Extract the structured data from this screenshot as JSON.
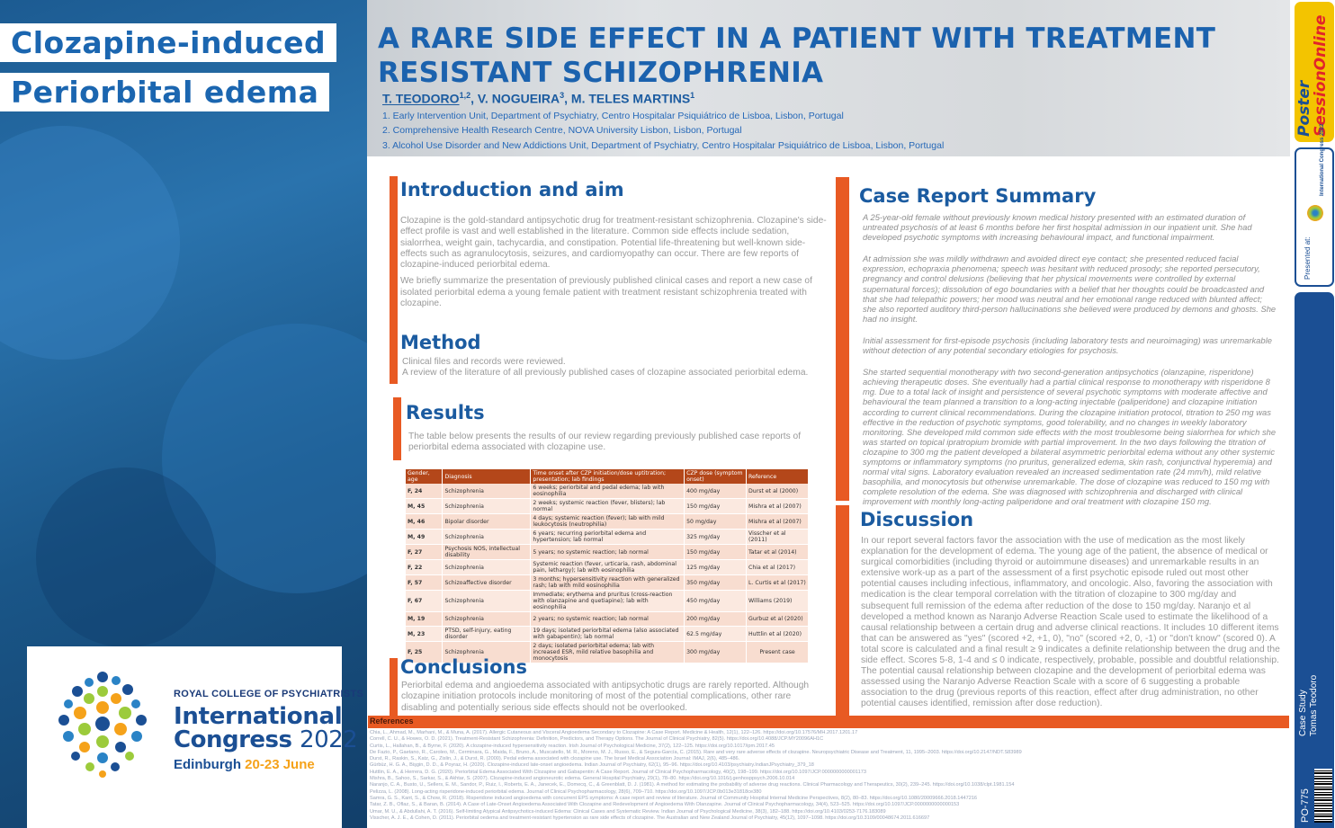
{
  "side_titles": [
    "Clozapine-induced",
    "Periorbital edema"
  ],
  "logo": {
    "org": "ROYAL COLLEGE OF PSYCHIATRISTS",
    "line1": "International",
    "line2_word": "Congress",
    "line2_year": "2022",
    "city": "Edinburgh",
    "dates": "20-23 June"
  },
  "header": {
    "title": "A RARE SIDE EFFECT IN A PATIENT WITH TREATMENT RESISTANT SCHIZOPHRENIA",
    "first_author": "T. TEODORO",
    "first_author_sup": "1,2",
    "other_authors": ", V. NOGUEIRA",
    "author2_sup": "3",
    "author3": ", M. TELES MARTINS",
    "author3_sup": "1",
    "affiliations": [
      "1. Early Intervention Unit, Department of Psychiatry, Centro Hospitalar Psiquiátrico de Lisboa, Lisbon, Portugal",
      "2. Comprehensive Health Research Centre, NOVA University Lisbon, Lisbon, Portugal",
      "3. Alcohol Use Disorder and New Addictions Unit, Department of Psychiatry, Centro Hospitalar Psiquiátrico de Lisboa, Lisbon, Portugal"
    ]
  },
  "right_strip": {
    "badge_a": "Poster",
    "badge_b": "SessionOnline",
    "presented_at": "Presented at:",
    "mini_logo_text": "International Congress 2022",
    "case_study": "Case Study",
    "author": "Tomas Teodoro",
    "code": "PO-775"
  },
  "intro": {
    "title": "Introduction and aim",
    "p1": "Clozapine is the gold-standard antipsychotic drug for treatment-resistant schizophrenia. Clozapine's side-effect profile is vast and well established in the literature. Common side effects include sedation, sialorrhea, weight gain, tachycardia, and constipation. Potential life-threatening but well-known side-effects such as agranulocytosis, seizures, and cardiomyopathy can occur. There are few reports of clozapine-induced periorbital edema.",
    "p2": "We briefly summarize the presentation of previously published clinical cases and report a new case of isolated periorbital edema a young female patient with treatment resistant schizophrenia treated with clozapine."
  },
  "method": {
    "title": "Method",
    "p1": "Clinical files and records were reviewed.",
    "p2": "A review of the literature of all previously published cases of clozapine associated periorbital edema."
  },
  "results": {
    "title": "Results",
    "intro": "The table below presents the results of our review regarding previously published case reports of periorbital edema associated with clozapine use.",
    "columns": [
      "Gender, age",
      "Diagnosis",
      "Time onset after CZP initiation/dose uptitration; presentation; lab findings",
      "CZP dose (symptom onset)",
      "Reference"
    ],
    "rows": [
      [
        "F, 24",
        "Schizophrenia",
        "6 weeks; periorbital and pedal edema; lab with eosinophilia",
        "400 mg/day",
        "Durst et al (2000)"
      ],
      [
        "M, 45",
        "Schizophrenia",
        "2 weeks; systemic reaction (fever, blisters); lab normal",
        "150 mg/day",
        "Mishra et al (2007)"
      ],
      [
        "M, 46",
        "Bipolar disorder",
        "4 days; systemic reaction (fever); lab with mild leukocytosis (neutrophilia)",
        "50 mg/day",
        "Mishra et al (2007)"
      ],
      [
        "M, 49",
        "Schizophrenia",
        "6 years; recurring periorbital edema and hypertension; lab normal",
        "325 mg/day",
        "Visscher et al (2011)"
      ],
      [
        "F, 27",
        "Psychosis NOS, intellectual disability",
        "5 years; no systemic reaction; lab normal",
        "150 mg/day",
        "Tatar et al (2014)"
      ],
      [
        "F, 22",
        "Schizophrenia",
        "Systemic reaction (fever, urticaria, rash, abdominal pain, lethargy); lab with eosinophilia",
        "125 mg/day",
        "Chia et al (2017)"
      ],
      [
        "F, 57",
        "Schizoaffective disorder",
        "3 months; hypersensitivity reaction with generalized rash; lab with mild eosinophilia",
        "350 mg/day",
        "L. Curtis et al (2017)"
      ],
      [
        "F, 67",
        "Schizophrenia",
        "Immediate; erythema and pruritus (cross-reaction with olanzapine and quetiapine); lab with eosinophilia",
        "450 mg/day",
        "Williams (2019)"
      ],
      [
        "M, 19",
        "Schizophrenia",
        "2 years; no systemic reaction; lab normal",
        "200 mg/day",
        "Gurbuz et al (2020)"
      ],
      [
        "M, 23",
        "PTSD, self-injury, eating disorder",
        "19 days; isolated periorbital edema (also associated with gabapentin); lab normal",
        "62.5 mg/day",
        "Huttlin et al (2020)"
      ],
      [
        "F, 25",
        "Schizophrenia",
        "2 days; isolated periorbital edema; lab with increased ESR, mild relative basophilia and monocytosis",
        "300 mg/day",
        "Present case"
      ]
    ]
  },
  "conclusions": {
    "title": "Conclusions",
    "text": "Periorbital edema and angioedema associated with antipsychotic drugs are rarely reported. Although clozapine initiation protocols include monitoring of most of the potential complications, other rare disabling and potentially serious side effects should not be overlooked."
  },
  "case_report": {
    "title": "Case Report Summary",
    "paragraphs": [
      "A 25-year-old female without previously known medical history presented with an estimated duration of untreated psychosis of at least 6 months before her first hospital admission in our inpatient unit. She had developed psychotic symptoms with increasing behavioural impact, and functional impairment.",
      "At admission she was mildly withdrawn and avoided direct eye contact; she presented reduced facial expression, echopraxia phenomena; speech was hesitant with reduced prosody; she reported persecutory, pregnancy and control delusions (believing that her physical movements were controlled by external supernatural forces); dissolution of ego boundaries with a belief that her thoughts could be broadcasted and that she had telepathic powers; her mood was neutral and her emotional range reduced with blunted affect; she also reported auditory third-person hallucinations she believed were produced by demons and ghosts. She had no insight.",
      "Initial assessment for first-episode psychosis (including laboratory tests and neuroimaging) was unremarkable without detection of any potential secondary etiologies for psychosis.",
      "She started sequential monotherapy with two second-generation antipsychotics (olanzapine, risperidone) achieving therapeutic doses. She eventually had a partial clinical response to monotherapy with risperidone 8 mg. Due to a total lack of insight and persistence of several psychotic symptoms with moderate affective and behavioural the team planned a transition to a long-acting injectable (paliperidone) and clozapine initiation according to current clinical recommendations. During the clozapine initiation protocol,  titration to 250 mg was effective in the reduction of psychotic symptoms, good tolerability, and no changes in weekly laboratory monitoring. She developed mild common side effects with the most troublesome being sialorrhea for which she was started on topical ipratropium bromide with partial improvement. In the two days following the titration of clozapine to 300 mg the patient developed a bilateral asymmetric periorbital edema without any other systemic symptoms or inflammatory symptoms (no pruritus, generalized edema, skin rash, conjunctival hyperemia) and normal vital signs. Laboratory evaluation revealed an increased sedimentation rate (24 mm/h), mild relative basophilia, and monocytosis but otherwise unremarkable. The dose of clozapine was reduced to 150 mg with complete resolution of the edema. She was diagnosed with schizophrenia and discharged with clinical improvement with monthly long-acting paliperidone and oral treatment with clozapine 150 mg."
    ]
  },
  "discussion": {
    "title": "Discussion",
    "text": "In our report several factors favor the association with the use of medication as the most likely explanation for the development of edema. The young age of the patient, the absence of medical or surgical comorbidities (including thyroid or autoimmune diseases) and unremarkable results in an extensive work-up as a part of the assessment of a first psychotic episode ruled out most other potential causes including infectious, inflammatory, and oncologic. Also, favoring the association with medication is the clear temporal correlation with the titration of clozapine to 300 mg/day and subsequent full remission of the edema after reduction of the dose to 150 mg/day. Naranjo et al developed a method known as Naranjo Adverse Reaction Scale used to estimate the likelihood of a causal relationship between a certain drug and adverse clinical reactions. It includes 10 different items that can be answered as \"yes\" (scored +2, +1, 0), \"no\" (scored +2, 0, -1) or \"don't know\" (scored 0). A total score is calculated and a final result ≥ 9 indicates a definite relationship between the drug and the side effect. Scores 5-8, 1-4 and ≤ 0 indicate, respectively, probable, possible and doubtful relationship. The potential causal relationship between clozapine and the development of periorbital edema was assessed using the Naranjo Adverse Reaction Scale with a score of 6 suggesting a probable association to the drug (previous reports of this reaction, effect after drug administration, no other potential causes identified, remission after dose reduction)."
  },
  "references": {
    "label": "References",
    "items": [
      "Chia, L., Ahmad, M., Marhani, M., & Muna, A. (2017). Allergic Cutaneous and Visceral Angioedema Secondary to Clozapine: A Case Report. Medicine & Health, 12(1), 122–126. https://doi.org/10.17576/MH.2017.1201.17",
      "Correll, C. U., & Howes, O. D. (2021). Treatment-Resistant Schizophrenia: Definition, Predictors, and Therapy Options. The Journal of Clinical Psychiatry, 82(5). https://doi.org/10.4088/JCP.MY20096AH1C",
      "Curtis, L., Hallahan, B., & Byrne, F. (2020). A clozapine-induced hypersensitivity reaction. Irish Journal of Psychological Medicine, 37(2), 122–125. https://doi.org/10.1017/ipm.2017.45",
      "De Fazio, P., Gaetano, R., Caroleo, M., Cerminara, G., Maida, F., Bruno, A., Muscatello, M. R., Moreno, M. J., Russo, E., & Segura-García, C. (2015). Rare and very rare adverse effects of clozapine. Neuropsychiatric Disease and Treatment, 11, 1995–2003. https://doi.org/10.2147/NDT.S83989",
      "Durst, R., Raskin, S., Katz, G., Zislin, J., & Durst, R. (2000). Pedal edema associated with clozapine use. The Israel Medical Association Journal: IMAJ, 2(6), 485–486.",
      "Gürbüz, H. G. A., Bişgin, D. D., & Poyraz, H. (2020). Clozapine-induced late-onset angioedema. Indian Journal of Psychiatry, 62(1), 95–96. https://doi.org/10.4103/psychiatry.IndianJPsychiatry_379_18",
      "Huttlin, E. A., & Herrera, D. G. (2020). Periorbital Edema Associated With Clozapine and Gabapentin: A Case Report. Journal of Clinical Psychopharmacology, 40(2), 198–199. https://doi.org/10.1097/JCP.0000000000001173",
      "Mishra, B., Sahoo, S., Sarkar, S., & Akhtar, S. (2007). Clozapine-induced angioneurotic edema. General Hospital Psychiatry, 29(1), 78–80. https://doi.org/10.1016/j.genhosppsych.2006.10.014",
      "Naranjo, C. A., Busto, U., Sellers, E. M., Sandor, P., Ruiz, I., Roberts, E. A., Janecek, E., Domecq, C., & Greenblatt, D. J. (1981). A method for estimating the probability of adverse drug reactions. Clinical Pharmacology and Therapeutics, 30(2), 239–245. https://doi.org/10.1038/clpt.1981.154",
      "Pelizza, L. (2008). Long-acting risperidone-induced periorbital edema. Journal of Clinical Psychopharmacology, 28(6), 709–710. https://doi.org/10.1097/JCP.0b013e31818ce380",
      "Samra, G. S., Kant, S., & Chow, R. (2018). Risperidone induced angioedema with concurrent EPS symptoms: A case report and review of literature. Journal of Community Hospital Internal Medicine Perspectives, 8(2), 80–83. https://doi.org/10.1080/20009666.2018.1447216",
      "Tatar, Z. B., Oflaz, S., & Baran, B. (2014). A Case of Late-Onset Angioedema Associated With Clozapine and Redevelopment of Angioedema With Olanzapine. Journal of Clinical Psychopharmacology, 34(4), 523–525. https://doi.org/10.1097/JCP.0000000000000153",
      "Umar, M. U., & Abdullahi, A. T. (2016). Self-limiting Atypical Antipsychotics-induced Edema: Clinical Cases and Systematic Review. Indian Journal of Psychological Medicine, 38(3), 182–188. https://doi.org/10.4103/0253-7176.183089",
      "Visscher, A. J. E., & Cohen, D. (2011). Periorbital oedema and treatment-resistant hypertension as rare side effects of clozapine. The Australian and New Zealand Journal of Psychiatry, 45(12), 1097–1098. https://doi.org/10.3109/00048674.2011.616697"
    ]
  }
}
